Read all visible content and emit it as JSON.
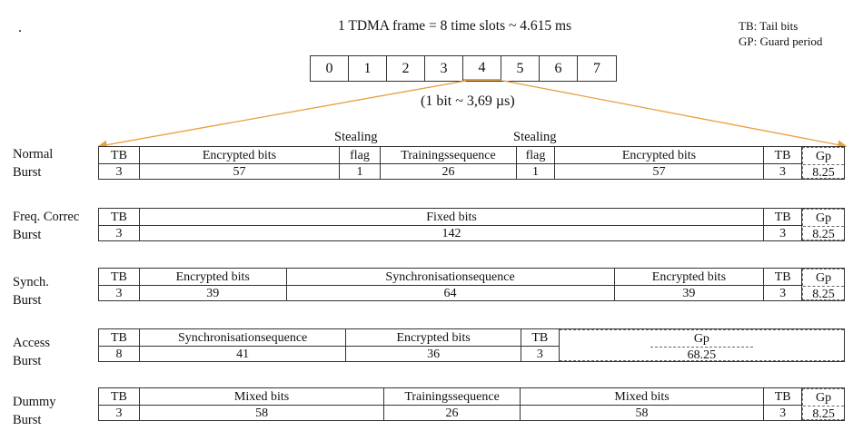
{
  "dot": ".",
  "header": {
    "frame_text": "1 TDMA frame = 8 time slots ~ 4.615 ms",
    "bit_text": "(1 bit ~ 3,69 µs)"
  },
  "legend": {
    "tb": "TB: Tail bits",
    "gp": "GP: Guard period"
  },
  "slots": [
    "0",
    "1",
    "2",
    "3",
    "4",
    "5",
    "6",
    "7"
  ],
  "highlight_slot": "4",
  "stealing": {
    "left": "Stealing",
    "right": "Stealing"
  },
  "colors": {
    "zoom_lines": "#e8a040",
    "border": "#333333"
  },
  "bursts": {
    "normal": {
      "label_line1": "Normal",
      "label_line2": "Burst",
      "cells": [
        {
          "name": "TB",
          "value": "3"
        },
        {
          "name": "Encrypted bits",
          "value": "57"
        },
        {
          "name": "flag",
          "value": "1"
        },
        {
          "name": "Trainingssequence",
          "value": "26"
        },
        {
          "name": "flag",
          "value": "1"
        },
        {
          "name": "Encrypted bits",
          "value": "57"
        },
        {
          "name": "TB",
          "value": "3"
        },
        {
          "name": "Gp",
          "value": "8.25"
        }
      ]
    },
    "freq": {
      "label_line1": "Freq. Correc",
      "label_line2": "Burst",
      "cells": [
        {
          "name": "TB",
          "value": "3"
        },
        {
          "name": "Fixed bits",
          "value": "142"
        },
        {
          "name": "TB",
          "value": "3"
        },
        {
          "name": "Gp",
          "value": "8.25"
        }
      ]
    },
    "synch": {
      "label_line1": "Synch.",
      "label_line2": "Burst",
      "cells": [
        {
          "name": "TB",
          "value": "3"
        },
        {
          "name": "Encrypted bits",
          "value": "39"
        },
        {
          "name": "Synchronisationsequence",
          "value": "64"
        },
        {
          "name": "Encrypted bits",
          "value": "39"
        },
        {
          "name": "TB",
          "value": "3"
        },
        {
          "name": "Gp",
          "value": "8.25"
        }
      ]
    },
    "access": {
      "label_line1": "Access",
      "label_line2": "Burst",
      "cells": [
        {
          "name": "TB",
          "value": "8"
        },
        {
          "name": "Synchronisationsequence",
          "value": "41"
        },
        {
          "name": "Encrypted bits",
          "value": "36"
        },
        {
          "name": "TB",
          "value": "3"
        },
        {
          "name": "Gp",
          "value": "68.25"
        }
      ]
    },
    "dummy": {
      "label_line1": "Dummy",
      "label_line2": "Burst",
      "cells": [
        {
          "name": "TB",
          "value": "3"
        },
        {
          "name": "Mixed bits",
          "value": "58"
        },
        {
          "name": "Trainingssequence",
          "value": "26"
        },
        {
          "name": "Mixed bits",
          "value": "58"
        },
        {
          "name": "TB",
          "value": "3"
        },
        {
          "name": "Gp",
          "value": "8.25"
        }
      ]
    }
  }
}
